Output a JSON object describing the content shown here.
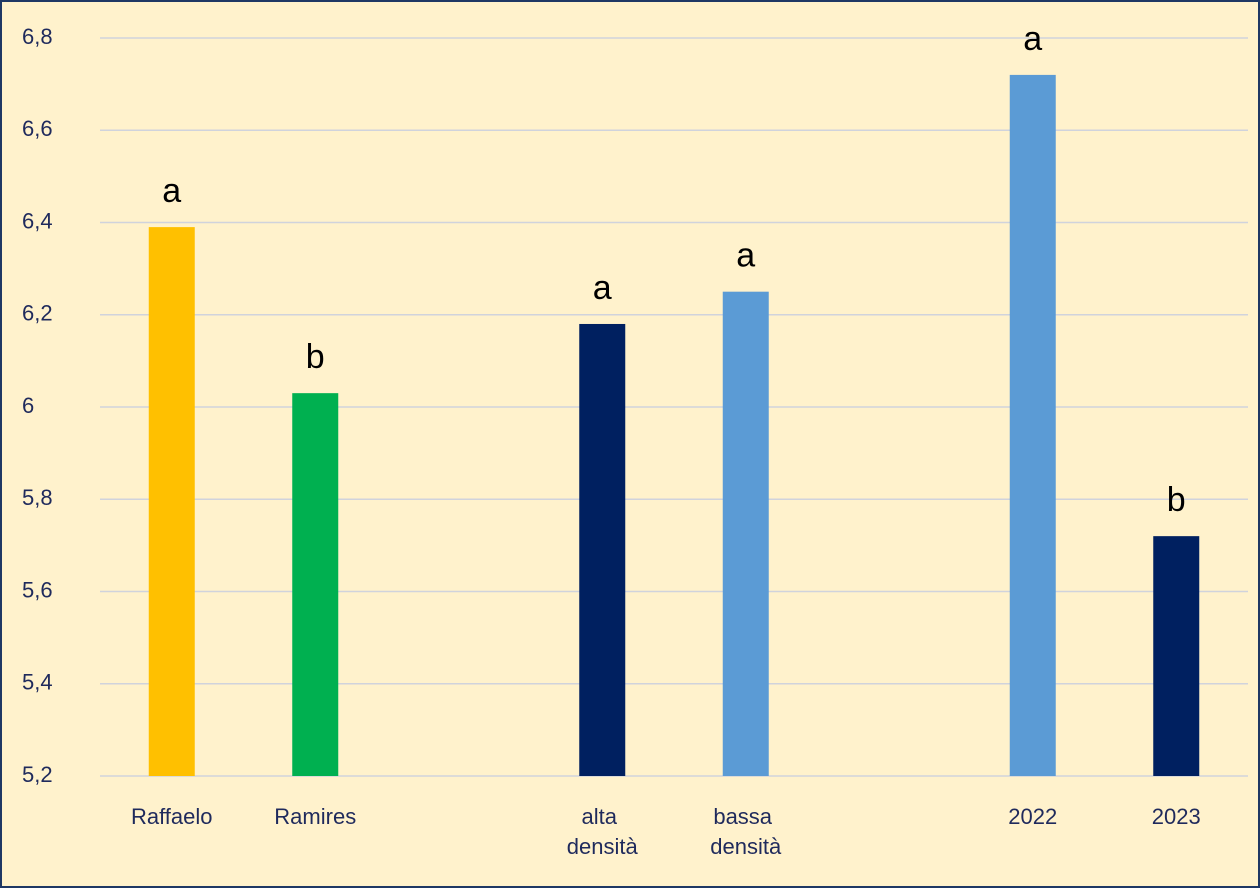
{
  "chart_data": {
    "type": "bar",
    "categories": [
      "Raffaelo",
      "Ramires",
      null,
      "alta densità",
      "bassa densità",
      null,
      "2022",
      "2023"
    ],
    "values": [
      6.39,
      6.03,
      null,
      6.18,
      6.25,
      null,
      6.72,
      5.72
    ],
    "colors": [
      "#ffc000",
      "#00b050",
      null,
      "#002060",
      "#5b9bd5",
      null,
      "#5b9bd5",
      "#002060"
    ],
    "annotations": [
      "a",
      "b",
      null,
      "a",
      "a",
      null,
      "a",
      "b"
    ],
    "ylim": [
      5.2,
      6.8
    ],
    "yticks": [
      {
        "value": 5.2,
        "label": "5,2"
      },
      {
        "value": 5.4,
        "label": "5,4"
      },
      {
        "value": 5.6,
        "label": "5,6"
      },
      {
        "value": 5.8,
        "label": "5,8"
      },
      6,
      {
        "value": 6.2,
        "label": "6,2"
      },
      {
        "value": 6.4,
        "label": "6,4"
      },
      {
        "value": 6.6,
        "label": "6,6"
      },
      {
        "value": 6.8,
        "label": "6,8"
      }
    ],
    "grid": true
  }
}
